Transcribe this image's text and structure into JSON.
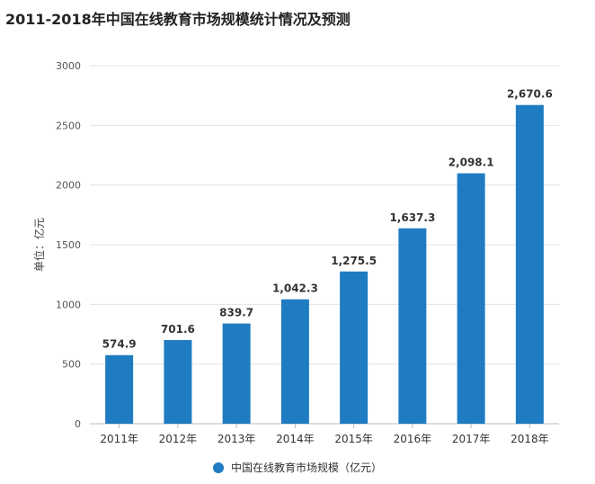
{
  "chart_data": {
    "type": "bar",
    "title": "2011-2018年中国在线教育市场规模统计情况及预测",
    "ylabel": "单位：亿元",
    "categories": [
      "2011年",
      "2012年",
      "2013年",
      "2014年",
      "2015年",
      "2016年",
      "2017年",
      "2018年"
    ],
    "series": [
      {
        "name": "中国在线教育市场规模（亿元）",
        "values": [
          574.9,
          701.6,
          839.7,
          1042.3,
          1275.5,
          1637.3,
          2098.1,
          2670.6
        ],
        "labels": [
          "574.9",
          "701.6",
          "839.7",
          "1,042.3",
          "1,275.5",
          "1,637.3",
          "2,098.1",
          "2,670.6"
        ],
        "color": "#1f7cc2"
      }
    ],
    "ylim": [
      0,
      3000
    ],
    "yticks": [
      "0",
      "500",
      "1000",
      "1500",
      "2000",
      "2500",
      "3000"
    ],
    "grid": true,
    "legend": "bottom"
  }
}
